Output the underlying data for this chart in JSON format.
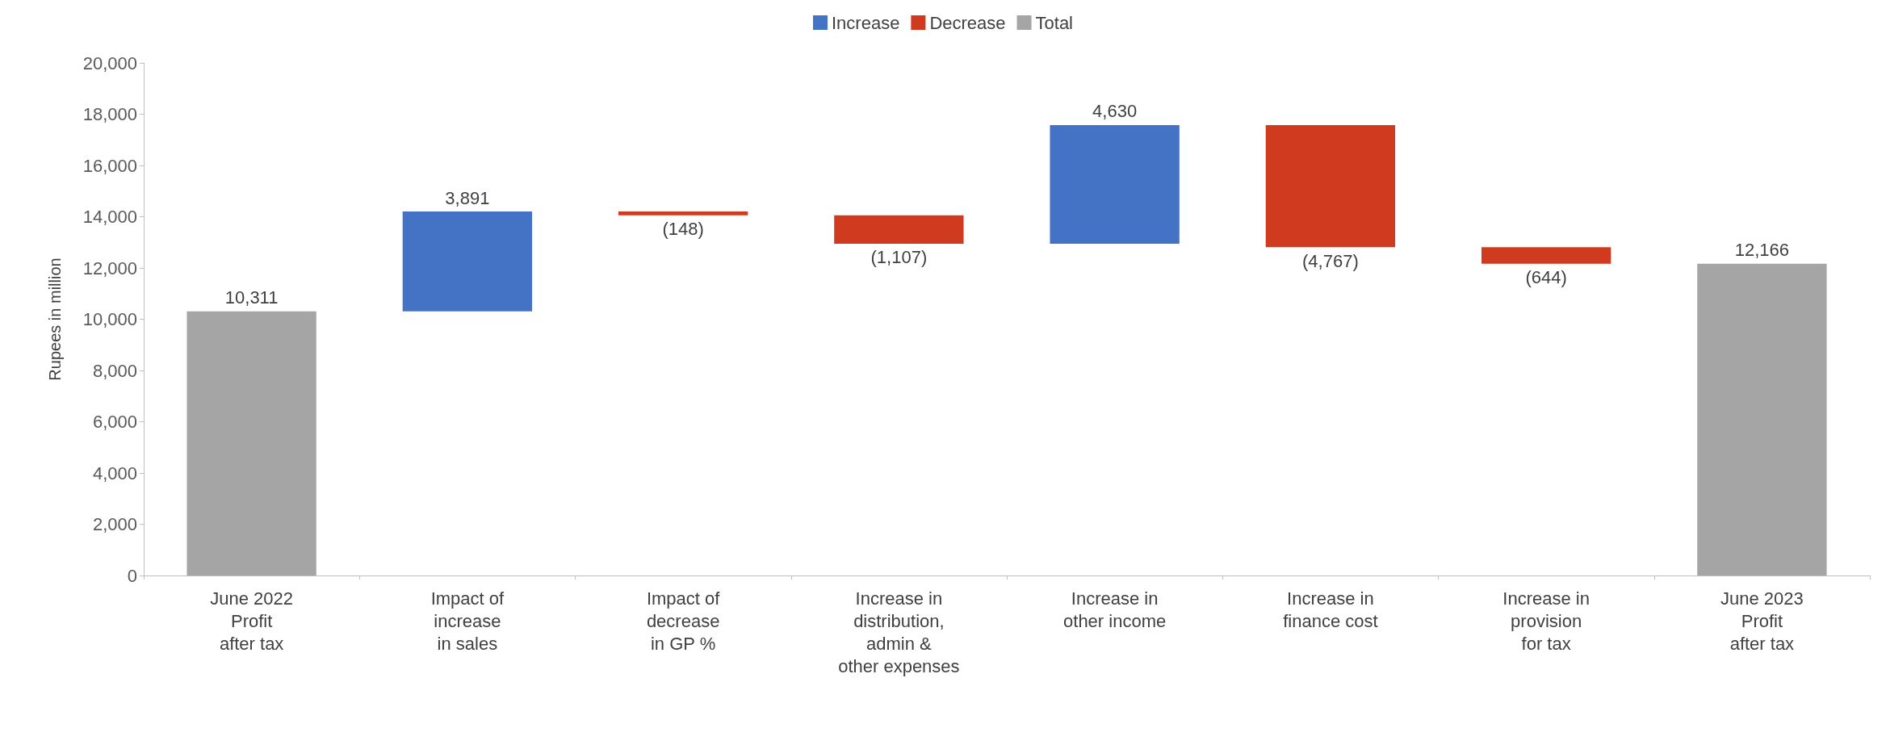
{
  "chart_data": {
    "type": "bar",
    "ylabel": "Rupees in million",
    "categories": [
      "June 2022\nProfit\nafter tax",
      "Impact of\nincrease\nin sales",
      "Impact of\ndecrease\nin GP %",
      "Increase in\ndistribution,\nadmin &\nother expenses",
      "Increase in\nother income",
      "Increase in\nfinance cost",
      "Increase in\nprovision\nfor tax",
      "June 2023\nProfit\nafter tax"
    ],
    "series": [
      {
        "name": "Increase",
        "color": "#4472c4",
        "values": [
          null,
          3891,
          null,
          null,
          4630,
          null,
          null,
          null
        ],
        "base": [
          null,
          10311,
          null,
          null,
          12947,
          null,
          null,
          null
        ],
        "value_labels": [
          null,
          "3,891",
          null,
          null,
          "4,630",
          null,
          null,
          null
        ]
      },
      {
        "name": "Decrease",
        "color": "#d03b1f",
        "values": [
          null,
          null,
          -148,
          -1107,
          null,
          -4767,
          -644,
          null
        ],
        "base": [
          null,
          null,
          14202,
          14054,
          null,
          17577,
          12810,
          null
        ],
        "value_labels": [
          null,
          null,
          "(148)",
          "(1,107)",
          null,
          "(4,767)",
          "(644)",
          null
        ]
      },
      {
        "name": "Total",
        "color": "#a5a5a5",
        "values": [
          10311,
          null,
          null,
          null,
          null,
          null,
          null,
          12166
        ],
        "value_labels": [
          "10,311",
          null,
          null,
          null,
          null,
          null,
          null,
          "12,166"
        ]
      }
    ],
    "ylim": [
      0,
      20000
    ],
    "yticks": [
      {
        "value": 0,
        "label": "0"
      },
      {
        "value": 2000,
        "label": "2,000"
      },
      {
        "value": 4000,
        "label": "4,000"
      },
      {
        "value": 6000,
        "label": "6,000"
      },
      {
        "value": 8000,
        "label": "8,000"
      },
      {
        "value": 10000,
        "label": "10,000"
      },
      {
        "value": 12000,
        "label": "12,000"
      },
      {
        "value": 14000,
        "label": "14,000"
      },
      {
        "value": 16000,
        "label": "16,000"
      },
      {
        "value": 18000,
        "label": "18,000"
      },
      {
        "value": 20000,
        "label": "20,000"
      }
    ],
    "grid": false,
    "legend": "top"
  }
}
